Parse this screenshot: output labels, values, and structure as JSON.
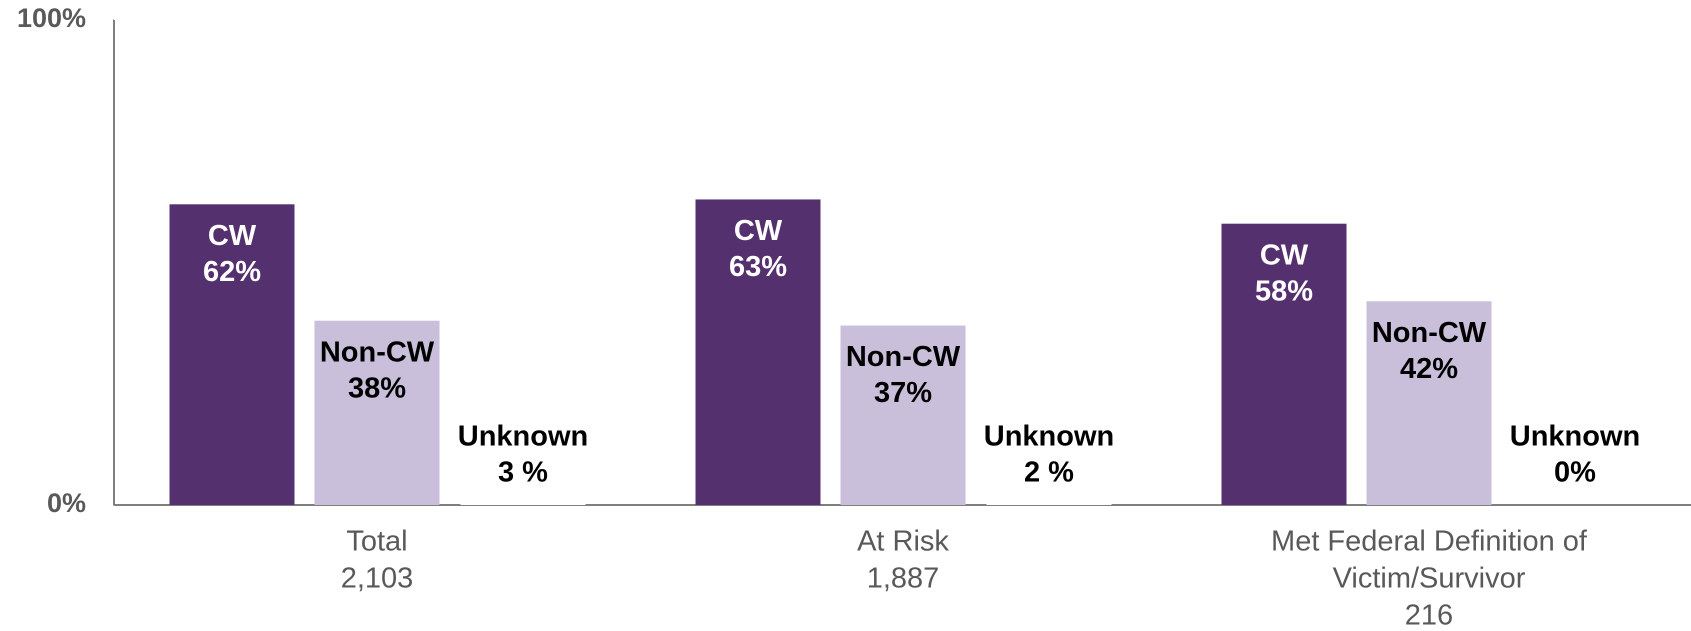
{
  "chart_data": {
    "type": "bar",
    "categories": [
      [
        "Total",
        "2,103"
      ],
      [
        "At Risk",
        "1,887"
      ],
      [
        "Met Federal Definition of",
        "Victim/Survivor",
        "216"
      ]
    ],
    "series": [
      {
        "name": "CW",
        "color": "#55306f",
        "values": [
          62,
          63,
          58
        ],
        "value_labels": [
          "62%",
          "63%",
          "58%"
        ]
      },
      {
        "name": "Non-CW",
        "color": "#c9bfdb",
        "values": [
          38,
          37,
          42
        ],
        "value_labels": [
          "38%",
          "37%",
          "42%"
        ]
      },
      {
        "name": "Unknown",
        "color": "#ffffff",
        "values": [
          3,
          2,
          0
        ],
        "value_labels": [
          "3 %",
          "2 %",
          "0%"
        ]
      }
    ],
    "ylim": [
      0,
      100
    ],
    "yticks": [
      {
        "value": 0,
        "label": "0%"
      },
      {
        "value": 100,
        "label": "100%"
      }
    ]
  }
}
